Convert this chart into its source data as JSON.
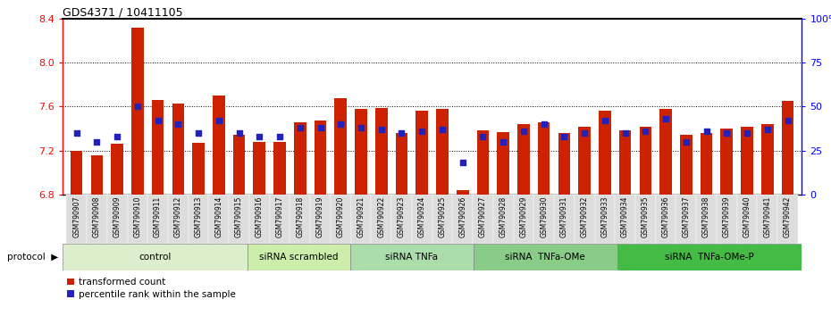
{
  "title": "GDS4371 / 10411105",
  "samples": [
    "GSM790907",
    "GSM790908",
    "GSM790909",
    "GSM790910",
    "GSM790911",
    "GSM790912",
    "GSM790913",
    "GSM790914",
    "GSM790915",
    "GSM790916",
    "GSM790917",
    "GSM790918",
    "GSM790919",
    "GSM790920",
    "GSM790921",
    "GSM790922",
    "GSM790923",
    "GSM790924",
    "GSM790925",
    "GSM790926",
    "GSM790927",
    "GSM790928",
    "GSM790929",
    "GSM790930",
    "GSM790931",
    "GSM790932",
    "GSM790933",
    "GSM790934",
    "GSM790935",
    "GSM790936",
    "GSM790937",
    "GSM790938",
    "GSM790939",
    "GSM790940",
    "GSM790941",
    "GSM790942"
  ],
  "red_values": [
    7.2,
    7.16,
    7.26,
    8.32,
    7.66,
    7.63,
    7.27,
    7.7,
    7.34,
    7.28,
    7.28,
    7.46,
    7.47,
    7.68,
    7.58,
    7.59,
    7.36,
    7.56,
    7.58,
    6.84,
    7.38,
    7.37,
    7.44,
    7.46,
    7.36,
    7.42,
    7.56,
    7.38,
    7.42,
    7.58,
    7.34,
    7.36,
    7.4,
    7.42,
    7.44,
    7.65
  ],
  "blue_percentile": [
    35,
    30,
    33,
    50,
    42,
    40,
    35,
    42,
    35,
    33,
    33,
    38,
    38,
    40,
    38,
    37,
    35,
    36,
    37,
    18,
    33,
    30,
    36,
    40,
    33,
    35,
    42,
    35,
    36,
    43,
    30,
    36,
    35,
    35,
    37,
    42
  ],
  "ylim_left": [
    6.8,
    8.4
  ],
  "yticks_left": [
    6.8,
    7.2,
    7.6,
    8.0,
    8.4
  ],
  "yticks_right": [
    0,
    25,
    50,
    75,
    100
  ],
  "ytick_labels_right": [
    "0",
    "25",
    "50",
    "75",
    "100%"
  ],
  "bar_color": "#CC2200",
  "dot_color": "#2222BB",
  "groups": [
    {
      "label": "control",
      "start": 0,
      "end": 9
    },
    {
      "label": "siRNA scrambled",
      "start": 9,
      "end": 14
    },
    {
      "label": "siRNA TNFa",
      "start": 14,
      "end": 20
    },
    {
      "label": "siRNA  TNFa-OMe",
      "start": 20,
      "end": 27
    },
    {
      "label": "siRNA  TNFa-OMe-P",
      "start": 27,
      "end": 36
    }
  ],
  "group_colors": [
    "#DDEECC",
    "#CCEEAA",
    "#AADDAA",
    "#88CC88",
    "#44BB44"
  ],
  "legend_red": "transformed count",
  "legend_blue": "percentile rank within the sample",
  "bar_bottom": 6.8,
  "yrange": 1.6,
  "xtick_bg": "#DDDDDD"
}
